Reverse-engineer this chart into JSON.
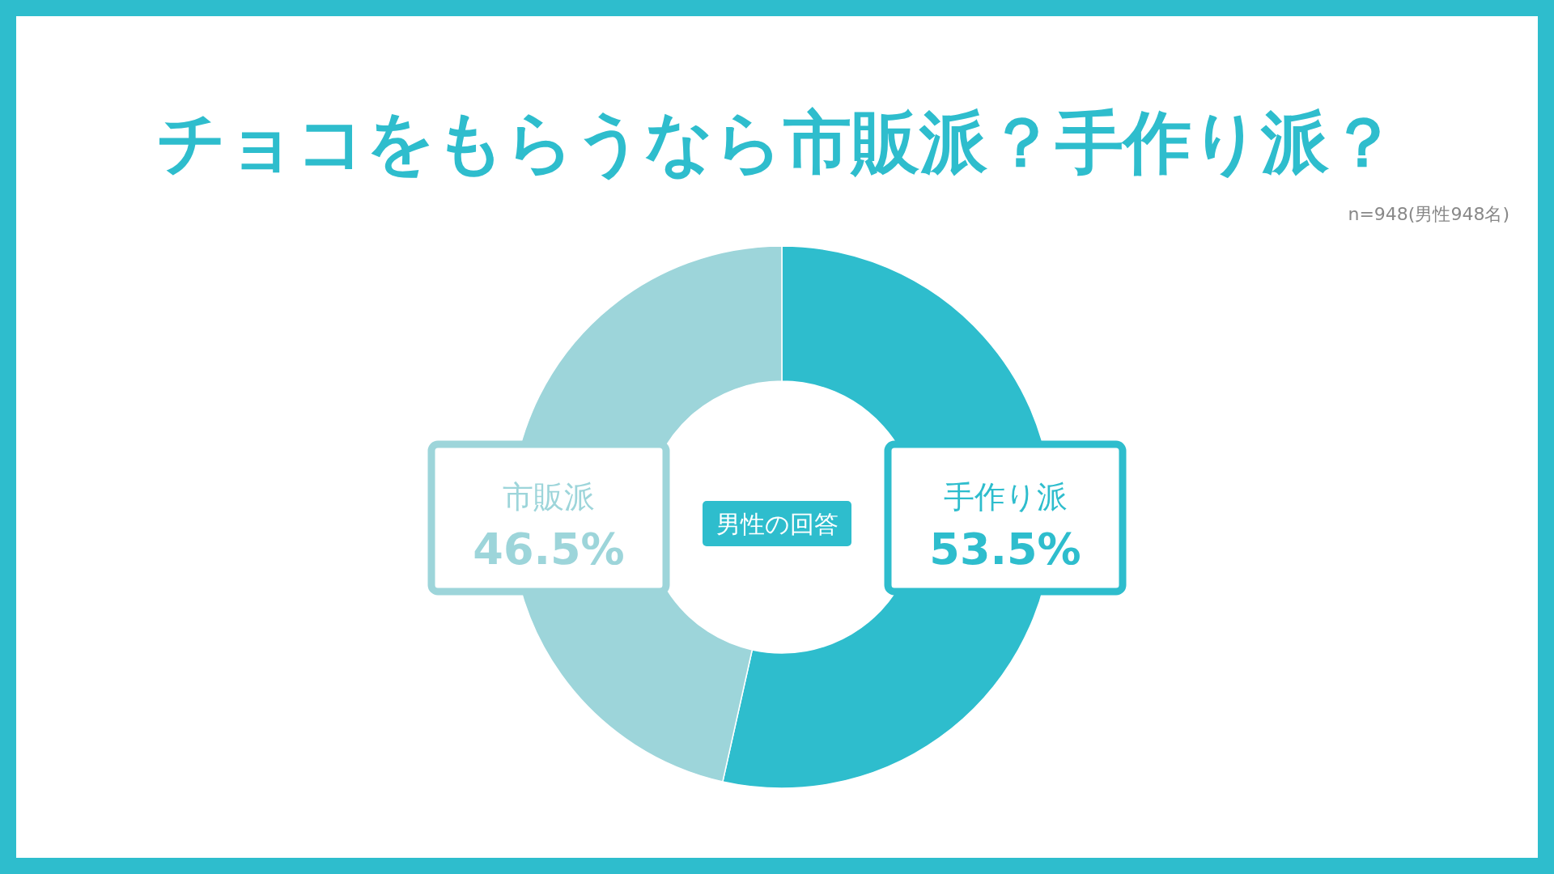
{
  "chart_data": {
    "type": "donut",
    "title": "チョコをもらうなら市販派？手作り派？",
    "subtitle": "n=948(男性948名)",
    "annotations": [
      "男性の回答"
    ],
    "categories": [
      "手作り派",
      "市販派"
    ],
    "values": [
      53.5,
      46.5
    ],
    "colors": [
      "#2ebdcd",
      "#9dd5da"
    ],
    "value_labels": [
      "53.5%",
      "46.5%"
    ]
  }
}
